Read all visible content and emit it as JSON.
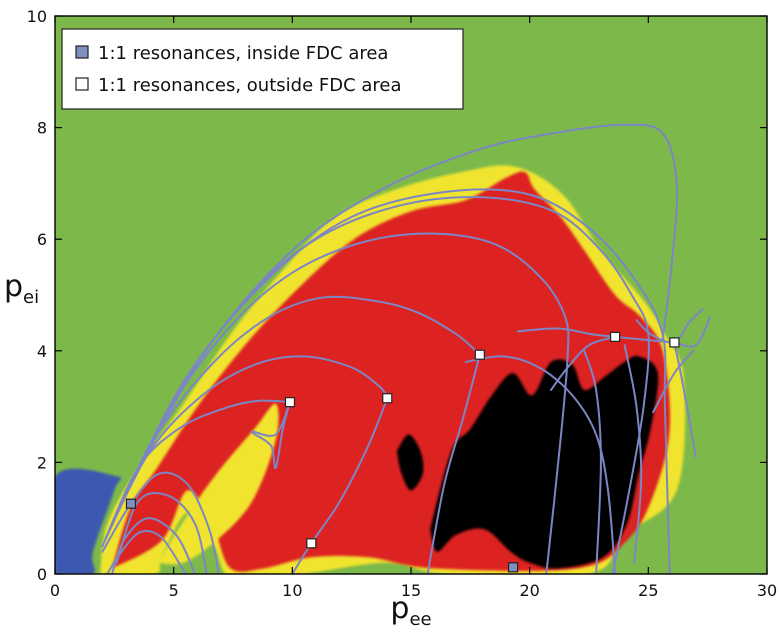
{
  "chart_data": {
    "type": "heatmap",
    "x_axis": {
      "label_main": "p",
      "label_sub": "ee",
      "range": [
        0,
        30
      ],
      "ticks": [
        0,
        5,
        10,
        15,
        20,
        25,
        30
      ]
    },
    "y_axis": {
      "label_main": "p",
      "label_sub": "ei",
      "range": [
        0,
        10
      ],
      "ticks": [
        0,
        2,
        4,
        6,
        8,
        10
      ]
    },
    "grid": false,
    "legend": {
      "placement": "top-left",
      "entries": [
        {
          "label": "1:1 resonances, inside FDC area",
          "marker": "square",
          "fill": "#7f8fc0"
        },
        {
          "label": "1:1 resonances, outside FDC area",
          "marker": "square",
          "fill": "#ffffff"
        }
      ]
    },
    "colors": {
      "background": "#7cb94a",
      "chaotic": "#dd2222",
      "transition": "#f1e42e",
      "fdc": "#060606",
      "low_region": "#3d58b0",
      "curves": "#7d86c4"
    },
    "series": [
      {
        "name": "1:1 resonances, inside FDC area",
        "marker": "square",
        "points": [
          {
            "x": 3.2,
            "y": 1.26
          },
          {
            "x": 19.3,
            "y": 0.12
          }
        ]
      },
      {
        "name": "1:1 resonances, outside FDC area",
        "marker": "square",
        "points": [
          {
            "x": 9.9,
            "y": 3.08
          },
          {
            "x": 14.0,
            "y": 3.15
          },
          {
            "x": 10.8,
            "y": 0.55
          },
          {
            "x": 17.9,
            "y": 3.93
          },
          {
            "x": 23.6,
            "y": 4.25
          },
          {
            "x": 26.1,
            "y": 4.15
          }
        ]
      }
    ],
    "regions": [
      {
        "kind": "background",
        "polygon": [
          [
            0,
            0
          ],
          [
            30,
            0
          ],
          [
            30,
            10
          ],
          [
            0,
            10
          ]
        ]
      },
      {
        "kind": "low_region",
        "polygon": [
          [
            0,
            0
          ],
          [
            1.6,
            0
          ],
          [
            1.6,
            0.4
          ],
          [
            2.5,
            1.5
          ],
          [
            2.6,
            1.75
          ],
          [
            0,
            1.75
          ]
        ]
      },
      {
        "kind": "transition",
        "polygon": [
          [
            1.9,
            0
          ],
          [
            2.2,
            0.9
          ],
          [
            3.5,
            1.9
          ],
          [
            5.5,
            3.1
          ],
          [
            7.4,
            4.3
          ],
          [
            9.5,
            5.4
          ],
          [
            11.8,
            6.4
          ],
          [
            14.4,
            6.9
          ],
          [
            17.1,
            7.2
          ],
          [
            19.4,
            7.3
          ],
          [
            21.4,
            6.8
          ],
          [
            23.0,
            5.8
          ],
          [
            24.8,
            4.9
          ],
          [
            25.7,
            4.3
          ],
          [
            26.5,
            3.5
          ],
          [
            26.2,
            1.5
          ],
          [
            24.0,
            0.7
          ],
          [
            22.5,
            0
          ],
          [
            16.5,
            0
          ],
          [
            14.0,
            0.2
          ],
          [
            10.4,
            0
          ],
          [
            8.2,
            0
          ],
          [
            7.2,
            0
          ],
          [
            6.7,
            0.5
          ],
          [
            5.6,
            1.1
          ],
          [
            4.5,
            0.3
          ],
          [
            4.2,
            0
          ]
        ]
      },
      {
        "kind": "chaotic",
        "polygon": [
          [
            2.4,
            0.1
          ],
          [
            3.2,
            1.2
          ],
          [
            4.3,
            1.9
          ],
          [
            6.0,
            3.0
          ],
          [
            8.0,
            4.1
          ],
          [
            10.2,
            5.1
          ],
          [
            12.6,
            6.0
          ],
          [
            15.0,
            6.5
          ],
          [
            17.3,
            6.7
          ],
          [
            19.0,
            7.1
          ],
          [
            19.8,
            7.2
          ],
          [
            20.2,
            6.9
          ],
          [
            21.3,
            6.4
          ],
          [
            22.3,
            5.8
          ],
          [
            23.6,
            5.0
          ],
          [
            24.7,
            4.6
          ],
          [
            25.6,
            4.0
          ],
          [
            25.9,
            2.6
          ],
          [
            25.2,
            1.4
          ],
          [
            24.1,
            0.6
          ],
          [
            22.0,
            0.1
          ],
          [
            16.0,
            0.1
          ],
          [
            13.2,
            0.3
          ],
          [
            10.8,
            0.3
          ],
          [
            8.8,
            0.1
          ],
          [
            7.4,
            0.1
          ],
          [
            6.7,
            0.8
          ],
          [
            5.6,
            1.5
          ],
          [
            4.5,
            0.6
          ]
        ]
      },
      {
        "kind": "transition",
        "polygon": [
          [
            4.3,
            0.2
          ],
          [
            5.8,
            1.2
          ],
          [
            7.0,
            1.9
          ],
          [
            8.4,
            2.6
          ],
          [
            9.3,
            3.05
          ],
          [
            9.3,
            2.4
          ],
          [
            8.3,
            1.3
          ],
          [
            6.8,
            0.6
          ],
          [
            5.4,
            0.2
          ]
        ]
      },
      {
        "kind": "fdc",
        "polygon": [
          [
            15.8,
            0.8
          ],
          [
            16.7,
            2.2
          ],
          [
            17.5,
            2.6
          ],
          [
            18.4,
            3.2
          ],
          [
            19.3,
            3.6
          ],
          [
            20.1,
            3.2
          ],
          [
            20.9,
            3.8
          ],
          [
            21.8,
            3.75
          ],
          [
            22.3,
            3.3
          ],
          [
            23.2,
            3.55
          ],
          [
            24.0,
            3.8
          ],
          [
            24.6,
            3.9
          ],
          [
            25.4,
            3.6
          ],
          [
            25.1,
            2.6
          ],
          [
            24.6,
            1.8
          ],
          [
            24.1,
            0.9
          ],
          [
            23.1,
            0.3
          ],
          [
            21.2,
            0.1
          ],
          [
            20.0,
            0.2
          ],
          [
            19.2,
            0.4
          ],
          [
            18.1,
            0.8
          ],
          [
            16.9,
            0.7
          ],
          [
            16.1,
            0.4
          ]
        ]
      },
      {
        "kind": "fdc",
        "polygon": [
          [
            14.4,
            2.2
          ],
          [
            14.9,
            2.5
          ],
          [
            15.4,
            2.2
          ],
          [
            15.5,
            1.8
          ],
          [
            15.0,
            1.5
          ],
          [
            14.6,
            1.8
          ]
        ]
      }
    ],
    "curves": [
      [
        [
          2.2,
          0
        ],
        [
          2.8,
          0.4
        ],
        [
          3.6,
          0.75
        ],
        [
          4.5,
          0.65
        ],
        [
          5.5,
          0.0
        ]
      ],
      [
        [
          2.4,
          0
        ],
        [
          2.9,
          0.6
        ],
        [
          3.9,
          1.0
        ],
        [
          5.1,
          0.7
        ],
        [
          5.9,
          0.0
        ]
      ],
      [
        [
          2.6,
          0.2
        ],
        [
          3.5,
          1.3
        ],
        [
          4.8,
          1.4
        ],
        [
          5.9,
          0.9
        ],
        [
          6.4,
          0.0
        ]
      ],
      [
        [
          2.0,
          0.4
        ],
        [
          3.2,
          1.26
        ],
        [
          4.4,
          1.8
        ],
        [
          5.6,
          1.6
        ],
        [
          6.5,
          0.8
        ],
        [
          6.9,
          0.0
        ]
      ],
      [
        [
          2.0,
          0.5
        ],
        [
          3.5,
          1.9
        ],
        [
          5.2,
          2.6
        ],
        [
          7.0,
          2.95
        ],
        [
          8.5,
          3.1
        ],
        [
          9.9,
          3.08
        ]
      ],
      [
        [
          9.9,
          3.08
        ],
        [
          9.3,
          2.5
        ],
        [
          8.3,
          2.55
        ],
        [
          9.1,
          2.3
        ],
        [
          9.3,
          1.9
        ],
        [
          9.6,
          2.6
        ],
        [
          9.9,
          3.08
        ]
      ],
      [
        [
          2.1,
          0.6
        ],
        [
          4.0,
          2.2
        ],
        [
          6.2,
          3.2
        ],
        [
          8.4,
          3.75
        ],
        [
          10.5,
          3.9
        ],
        [
          12.5,
          3.7
        ],
        [
          13.7,
          3.35
        ],
        [
          14.0,
          3.15
        ]
      ],
      [
        [
          14.0,
          3.15
        ],
        [
          13.2,
          2.3
        ],
        [
          12.0,
          1.3
        ],
        [
          10.8,
          0.55
        ],
        [
          10.0,
          0.0
        ]
      ],
      [
        [
          2.2,
          0.7
        ],
        [
          4.3,
          2.5
        ],
        [
          6.7,
          3.8
        ],
        [
          9.0,
          4.6
        ],
        [
          11.2,
          4.95
        ],
        [
          13.4,
          4.9
        ],
        [
          15.2,
          4.7
        ],
        [
          16.9,
          4.3
        ],
        [
          17.9,
          3.93
        ]
      ],
      [
        [
          17.9,
          3.93
        ],
        [
          17.2,
          2.8
        ],
        [
          16.4,
          1.6
        ],
        [
          15.7,
          0.0
        ]
      ],
      [
        [
          2.3,
          0.8
        ],
        [
          4.6,
          2.8
        ],
        [
          7.3,
          4.4
        ],
        [
          10.0,
          5.4
        ],
        [
          13.0,
          5.95
        ],
        [
          16.0,
          6.1
        ],
        [
          18.6,
          5.9
        ],
        [
          20.5,
          5.3
        ],
        [
          21.5,
          4.6
        ],
        [
          21.6,
          3.9
        ],
        [
          21.3,
          2.4
        ],
        [
          20.7,
          0.0
        ]
      ],
      [
        [
          2.4,
          0.9
        ],
        [
          5.0,
          3.1
        ],
        [
          8.0,
          4.9
        ],
        [
          11.0,
          6.0
        ],
        [
          14.5,
          6.6
        ],
        [
          18.0,
          6.75
        ],
        [
          21.0,
          6.5
        ],
        [
          23.0,
          5.8
        ],
        [
          24.3,
          5.0
        ],
        [
          25.0,
          4.3
        ],
        [
          24.8,
          3.0
        ],
        [
          24.2,
          1.5
        ],
        [
          23.5,
          0.0
        ]
      ],
      [
        [
          2.5,
          1.0
        ],
        [
          5.5,
          3.5
        ],
        [
          9.0,
          5.3
        ],
        [
          12.5,
          6.4
        ],
        [
          16.5,
          6.85
        ],
        [
          20.0,
          6.8
        ],
        [
          22.5,
          6.2
        ],
        [
          24.4,
          5.3
        ],
        [
          25.6,
          4.3
        ],
        [
          25.7,
          3.0
        ],
        [
          25.9,
          0.0
        ]
      ],
      [
        [
          2.6,
          1.1
        ],
        [
          6.2,
          3.9
        ],
        [
          10.0,
          5.8
        ],
        [
          13.8,
          6.9
        ],
        [
          17.8,
          7.6
        ],
        [
          21.0,
          7.9
        ],
        [
          24.0,
          8.05
        ],
        [
          25.6,
          7.9
        ],
        [
          26.2,
          7.0
        ],
        [
          26.0,
          5.6
        ],
        [
          25.6,
          4.2
        ]
      ],
      [
        [
          19.5,
          4.35
        ],
        [
          21.2,
          4.4
        ],
        [
          22.6,
          4.3
        ],
        [
          23.6,
          4.25
        ]
      ],
      [
        [
          20.9,
          3.3
        ],
        [
          21.6,
          3.7
        ],
        [
          22.5,
          4.1
        ],
        [
          23.6,
          4.25
        ]
      ],
      [
        [
          17.3,
          3.8
        ],
        [
          18.9,
          3.9
        ],
        [
          20.4,
          3.7
        ],
        [
          21.8,
          3.2
        ],
        [
          22.8,
          2.5
        ],
        [
          23.3,
          1.5
        ],
        [
          23.6,
          0.0
        ]
      ],
      [
        [
          23.6,
          4.25
        ],
        [
          24.8,
          4.2
        ],
        [
          26.1,
          4.15
        ]
      ],
      [
        [
          24.5,
          4.55
        ],
        [
          25.1,
          4.3
        ],
        [
          26.1,
          4.15
        ],
        [
          26.7,
          4.5
        ],
        [
          27.3,
          4.75
        ]
      ],
      [
        [
          26.1,
          4.15
        ],
        [
          26.5,
          3.3
        ],
        [
          27.0,
          2.1
        ]
      ],
      [
        [
          26.1,
          4.15
        ],
        [
          27.0,
          4.1
        ],
        [
          27.6,
          4.6
        ]
      ],
      [
        [
          25.2,
          2.9
        ],
        [
          26.1,
          3.6
        ],
        [
          26.9,
          4.0
        ]
      ],
      [
        [
          22.3,
          4.0
        ],
        [
          22.8,
          3.3
        ],
        [
          23.0,
          2.0
        ],
        [
          22.8,
          0.0
        ]
      ],
      [
        [
          24.0,
          4.1
        ],
        [
          24.5,
          3.0
        ],
        [
          24.7,
          1.7
        ],
        [
          24.4,
          0.2
        ]
      ]
    ]
  }
}
